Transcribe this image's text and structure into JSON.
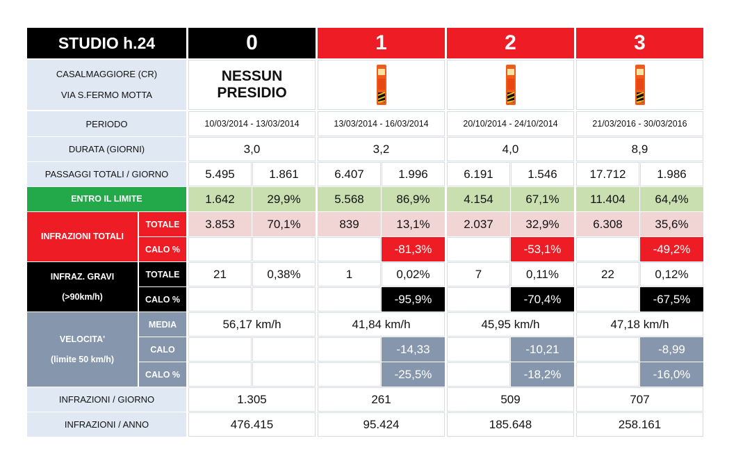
{
  "colors": {
    "red": "#ee1c24",
    "green": "#23a84a",
    "black": "#000000",
    "grey": "#8596ad",
    "light_blue": "#dfe8f3",
    "light_green": "#c9dfb0",
    "pink": "#f1d4d4"
  },
  "title": "STUDIO h.24",
  "location": [
    "CASALMAGGIORE (CR)",
    "VIA S.FERMO MOTTA"
  ],
  "nessun_presidio": [
    "NESSUN",
    "PRESIDIO"
  ],
  "device_icon": "speed-camera-column-icon",
  "labels": {
    "periodo": "PERIODO",
    "durata": "DURATA (GIORNI)",
    "passaggi": "PASSAGGI TOTALI / GIORNO",
    "entro": "ENTRO IL LIMITE",
    "infrazioni_totali": "INFRAZIONI TOTALI",
    "infraz_gravi": [
      "INFRAZ. GRAVI",
      "(>90km/h)"
    ],
    "velocita": [
      "VELOCITA'",
      "(limite 50 km/h)"
    ],
    "totale": "TOTALE",
    "calo_pct": "CALO %",
    "media": "MEDIA",
    "calo": "CALO",
    "infr_giorno": "INFRAZIONI / GIORNO",
    "infr_anno": "INFRAZIONI / ANNO"
  },
  "columns": [
    {
      "header": "0",
      "periodo": "10/03/2014 - 13/03/2014",
      "durata": "3,0",
      "passaggi": [
        "5.495",
        "1.861"
      ],
      "entro": [
        "1.642",
        "29,9%"
      ],
      "inf_totale": [
        "3.853",
        "70,1%"
      ],
      "inf_calo_pct": "",
      "gravi_totale": [
        "21",
        "0,38%"
      ],
      "gravi_calo_pct": "",
      "media": "56,17 km/h",
      "calo": "",
      "vel_calo_pct": "",
      "infr_giorno": "1.305",
      "infr_anno": "476.415"
    },
    {
      "header": "1",
      "periodo": "13/03/2014 - 16/03/2014",
      "durata": "3,2",
      "passaggi": [
        "6.407",
        "1.996"
      ],
      "entro": [
        "5.568",
        "86,9%"
      ],
      "inf_totale": [
        "839",
        "13,1%"
      ],
      "inf_calo_pct": "-81,3%",
      "gravi_totale": [
        "1",
        "0,02%"
      ],
      "gravi_calo_pct": "-95,9%",
      "media": "41,84 km/h",
      "calo": "-14,33",
      "vel_calo_pct": "-25,5%",
      "infr_giorno": "261",
      "infr_anno": "95.424"
    },
    {
      "header": "2",
      "periodo": "20/10/2014 - 24/10/2014",
      "durata": "4,0",
      "passaggi": [
        "6.191",
        "1.546"
      ],
      "entro": [
        "4.154",
        "67,1%"
      ],
      "inf_totale": [
        "2.037",
        "32,9%"
      ],
      "inf_calo_pct": "-53,1%",
      "gravi_totale": [
        "7",
        "0,11%"
      ],
      "gravi_calo_pct": "-70,4%",
      "media": "45,95 km/h",
      "calo": "-10,21",
      "vel_calo_pct": "-18,2%",
      "infr_giorno": "509",
      "infr_anno": "185.648"
    },
    {
      "header": "3",
      "periodo": "21/03/2016 - 30/03/2016",
      "durata": "8,9",
      "passaggi": [
        "17.712",
        "1.986"
      ],
      "entro": [
        "11.404",
        "64,4%"
      ],
      "inf_totale": [
        "6.308",
        "35,6%"
      ],
      "inf_calo_pct": "-49,2%",
      "gravi_totale": [
        "22",
        "0,12%"
      ],
      "gravi_calo_pct": "-67,5%",
      "media": "47,18 km/h",
      "calo": "-8,99",
      "vel_calo_pct": "-16,0%",
      "infr_giorno": "707",
      "infr_anno": "258.161"
    }
  ]
}
